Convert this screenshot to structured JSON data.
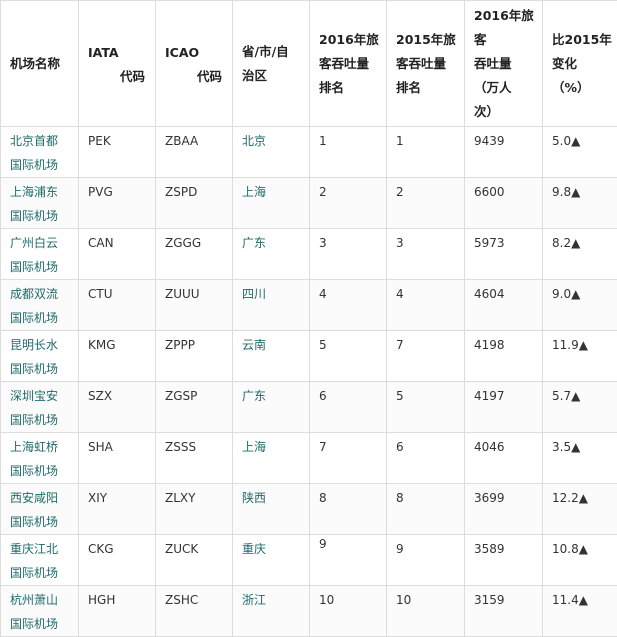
{
  "headers": {
    "name": "机场名称",
    "iata_top": "IATA",
    "iata_sub": "代码",
    "icao_top": "ICAO",
    "icao_sub": "代码",
    "province": [
      "省/市/自",
      "治区"
    ],
    "rank2016": [
      "2016年旅",
      "客吞吐量",
      "排名"
    ],
    "rank2015": [
      "2015年旅",
      "客吞吐量",
      "排名"
    ],
    "pax2016": [
      "2016年旅",
      "客",
      "吞吐量",
      "（万人",
      "次）"
    ],
    "change": [
      "比2015年",
      "变化",
      "（%）"
    ]
  },
  "rows": [
    {
      "name1": "北京首都",
      "name2": "国际机场",
      "iata": "PEK",
      "icao": "ZBAA",
      "province": "北京",
      "rank2016": "1",
      "rank2015": "1",
      "pax2016": "9439",
      "change": "5.0▲"
    },
    {
      "name1": "上海浦东",
      "name2": "国际机场",
      "iata": "PVG",
      "icao": "ZSPD",
      "province": "上海",
      "rank2016": "2",
      "rank2015": "2",
      "pax2016": "6600",
      "change": "9.8▲"
    },
    {
      "name1": "广州白云",
      "name2": "国际机场",
      "iata": "CAN",
      "icao": "ZGGG",
      "province": "广东",
      "rank2016": "3",
      "rank2015": "3",
      "pax2016": "5973",
      "change": "8.2▲"
    },
    {
      "name1": "成都双流",
      "name2": "国际机场",
      "iata": "CTU",
      "icao": "ZUUU",
      "province": "四川",
      "rank2016": "4",
      "rank2015": "4",
      "pax2016": "4604",
      "change": "9.0▲"
    },
    {
      "name1": "昆明长水",
      "name2": "国际机场",
      "iata": "KMG",
      "icao": "ZPPP",
      "province": "云南",
      "rank2016": "5",
      "rank2015": "7",
      "pax2016": "4198",
      "change": "11.9▲"
    },
    {
      "name1": "深圳宝安",
      "name2": "国际机场",
      "iata": "SZX",
      "icao": "ZGSP",
      "province": "广东",
      "rank2016": "6",
      "rank2015": "5",
      "pax2016": "4197",
      "change": "5.7▲"
    },
    {
      "name1": "上海虹桥",
      "name2": "国际机场",
      "iata": "SHA",
      "icao": "ZSSS",
      "province": "上海",
      "rank2016": "7",
      "rank2015": "6",
      "pax2016": "4046",
      "change": "3.5▲"
    },
    {
      "name1": "西安咸阳",
      "name2": "国际机场",
      "iata": "XIY",
      "icao": "ZLXY",
      "province": "陕西",
      "rank2016": "8",
      "rank2015": "8",
      "pax2016": "3699",
      "change": "12.2▲"
    },
    {
      "name1": "重庆江北",
      "name2": "国际机场",
      "iata": "CKG",
      "icao": "ZUCK",
      "province": "重庆",
      "rank2016": "9",
      "rank2015": "9",
      "pax2016": "3589",
      "change": "10.8▲"
    },
    {
      "name1": "杭州萧山",
      "name2": "国际机场",
      "iata": "HGH",
      "icao": "ZSHC",
      "province": "浙江",
      "rank2016": "10",
      "rank2015": "10",
      "pax2016": "3159",
      "change": "11.4▲"
    }
  ]
}
